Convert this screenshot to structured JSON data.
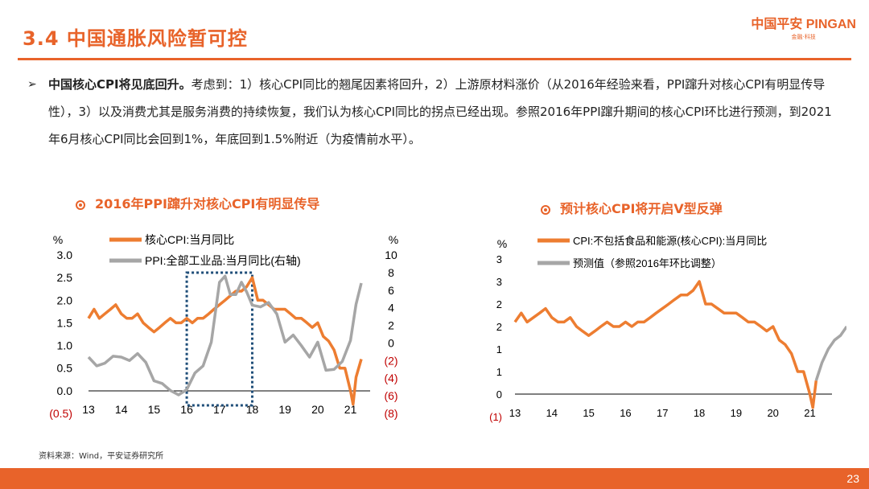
{
  "header": {
    "title": "3.4 中国通胀风险暂可控",
    "logo_text": "中国平安 PINGAN",
    "logo_sub": "金融·科技"
  },
  "body": {
    "lead": "中国核心CPI将见底回升。",
    "text": "考虑到：1）核心CPI同比的翘尾因素将回升，2）上游原材料涨价（从2016年经验来看，PPI蹿升对核心CPI有明显传导性），3）以及消费尤其是服务消费的持续恢复，我们认为核心CPI同比的拐点已经出现。参照2016年PPI蹿升期间的核心CPI环比进行预测，到2021年6月核心CPI同比会回到1%，年底回到1.5%附近（为疫情前水平）。"
  },
  "chart_left": {
    "heading": "2016年PPI蹿升对核心CPI有明显传导"
  },
  "chart_right": {
    "heading": "预计核心CPI将开启V型反弹"
  },
  "source": "资料来源：Wind，平安证券研究所",
  "page_number": "23",
  "colors": {
    "accent": "#e8632a",
    "orange_series": "#ed7d31",
    "gray_series": "#a6a6a6",
    "box": "#1f4e79"
  },
  "chart_data": [
    {
      "type": "line",
      "x_ticks": [
        "13",
        "14",
        "15",
        "16",
        "17",
        "18",
        "19",
        "20",
        "21"
      ],
      "y_label": "%",
      "y2_label": "%",
      "y_ticks": [
        "3.0",
        "2.5",
        "2.0",
        "1.5",
        "1.0",
        "0.5",
        "0.0",
        "(0.5)"
      ],
      "y2_ticks": [
        "10",
        "8",
        "6",
        "4",
        "2",
        "0",
        "(2)",
        "(4)",
        "(6)",
        "(8)"
      ],
      "ylim": [
        -0.5,
        3.0
      ],
      "y2lim": [
        -8,
        10
      ],
      "highlight_box": {
        "x_from": 2016.0,
        "x_to": 2018.0
      },
      "series": [
        {
          "name": "核心CPI:当月同比",
          "axis": "left",
          "x": [
            2013.0,
            2013.17,
            2013.33,
            2013.5,
            2013.67,
            2013.83,
            2014.0,
            2014.17,
            2014.33,
            2014.5,
            2014.67,
            2014.83,
            2015.0,
            2015.17,
            2015.33,
            2015.5,
            2015.67,
            2015.83,
            2016.0,
            2016.17,
            2016.33,
            2016.5,
            2016.67,
            2016.83,
            2017.0,
            2017.17,
            2017.33,
            2017.5,
            2017.67,
            2017.83,
            2018.0,
            2018.17,
            2018.33,
            2018.5,
            2018.67,
            2018.83,
            2019.0,
            2019.17,
            2019.33,
            2019.5,
            2019.67,
            2019.83,
            2020.0,
            2020.17,
            2020.33,
            2020.5,
            2020.67,
            2020.83,
            2021.0,
            2021.08,
            2021.17,
            2021.33
          ],
          "values": [
            1.6,
            1.8,
            1.6,
            1.7,
            1.8,
            1.9,
            1.7,
            1.6,
            1.6,
            1.7,
            1.5,
            1.4,
            1.3,
            1.4,
            1.5,
            1.6,
            1.5,
            1.5,
            1.6,
            1.5,
            1.6,
            1.6,
            1.7,
            1.8,
            1.9,
            2.0,
            2.1,
            2.2,
            2.2,
            2.3,
            2.5,
            2.0,
            2.0,
            1.9,
            1.8,
            1.8,
            1.8,
            1.7,
            1.6,
            1.6,
            1.5,
            1.4,
            1.5,
            1.2,
            1.1,
            0.9,
            0.5,
            0.5,
            0.0,
            -0.3,
            0.3,
            0.7
          ]
        },
        {
          "name": "PPI:全部工业品:当月同比(右轴)",
          "axis": "right",
          "x": [
            2013.0,
            2013.25,
            2013.5,
            2013.75,
            2014.0,
            2014.25,
            2014.5,
            2014.75,
            2015.0,
            2015.25,
            2015.5,
            2015.75,
            2016.0,
            2016.25,
            2016.5,
            2016.75,
            2017.0,
            2017.17,
            2017.33,
            2017.5,
            2017.67,
            2017.83,
            2018.0,
            2018.25,
            2018.5,
            2018.75,
            2019.0,
            2019.25,
            2019.5,
            2019.75,
            2020.0,
            2020.25,
            2020.5,
            2020.75,
            2021.0,
            2021.17,
            2021.33
          ],
          "values": [
            -1.6,
            -2.6,
            -2.3,
            -1.5,
            -1.6,
            -2.0,
            -1.2,
            -2.2,
            -4.3,
            -4.6,
            -5.4,
            -5.9,
            -5.3,
            -3.4,
            -2.6,
            0.1,
            6.9,
            7.6,
            5.5,
            5.5,
            6.9,
            5.8,
            4.3,
            4.1,
            4.6,
            3.3,
            0.1,
            0.9,
            -0.3,
            -1.6,
            0.1,
            -3.1,
            -3.0,
            -2.1,
            0.3,
            4.4,
            6.8
          ]
        }
      ]
    },
    {
      "type": "line",
      "x_ticks": [
        "13",
        "14",
        "15",
        "16",
        "17",
        "18",
        "19",
        "20",
        "21"
      ],
      "y_label": "%",
      "y_ticks": [
        "3",
        "3",
        "2",
        "2",
        "1",
        "1",
        "0",
        "(1)"
      ],
      "ylim": [
        -0.5,
        3.0
      ],
      "series": [
        {
          "name": "CPI:不包括食品和能源(核心CPI):当月同比",
          "x": [
            2013.0,
            2013.17,
            2013.33,
            2013.5,
            2013.67,
            2013.83,
            2014.0,
            2014.17,
            2014.33,
            2014.5,
            2014.67,
            2014.83,
            2015.0,
            2015.17,
            2015.33,
            2015.5,
            2015.67,
            2015.83,
            2016.0,
            2016.17,
            2016.33,
            2016.5,
            2016.67,
            2016.83,
            2017.0,
            2017.17,
            2017.33,
            2017.5,
            2017.67,
            2017.83,
            2018.0,
            2018.17,
            2018.33,
            2018.5,
            2018.67,
            2018.83,
            2019.0,
            2019.17,
            2019.33,
            2019.5,
            2019.67,
            2019.83,
            2020.0,
            2020.17,
            2020.33,
            2020.5,
            2020.67,
            2020.83,
            2021.0,
            2021.08,
            2021.17
          ],
          "values": [
            1.6,
            1.8,
            1.6,
            1.7,
            1.8,
            1.9,
            1.7,
            1.6,
            1.6,
            1.7,
            1.5,
            1.4,
            1.3,
            1.4,
            1.5,
            1.6,
            1.5,
            1.5,
            1.6,
            1.5,
            1.6,
            1.6,
            1.7,
            1.8,
            1.9,
            2.0,
            2.1,
            2.2,
            2.2,
            2.3,
            2.5,
            2.0,
            2.0,
            1.9,
            1.8,
            1.8,
            1.8,
            1.7,
            1.6,
            1.6,
            1.5,
            1.4,
            1.5,
            1.2,
            1.1,
            0.9,
            0.5,
            0.5,
            0.0,
            -0.3,
            0.3
          ]
        },
        {
          "name": "预测值（参照2016年环比调整）",
          "x": [
            2021.17,
            2021.33,
            2021.5,
            2021.67,
            2021.83,
            2022.0
          ],
          "values": [
            0.3,
            0.7,
            1.0,
            1.2,
            1.3,
            1.5
          ]
        }
      ]
    }
  ]
}
